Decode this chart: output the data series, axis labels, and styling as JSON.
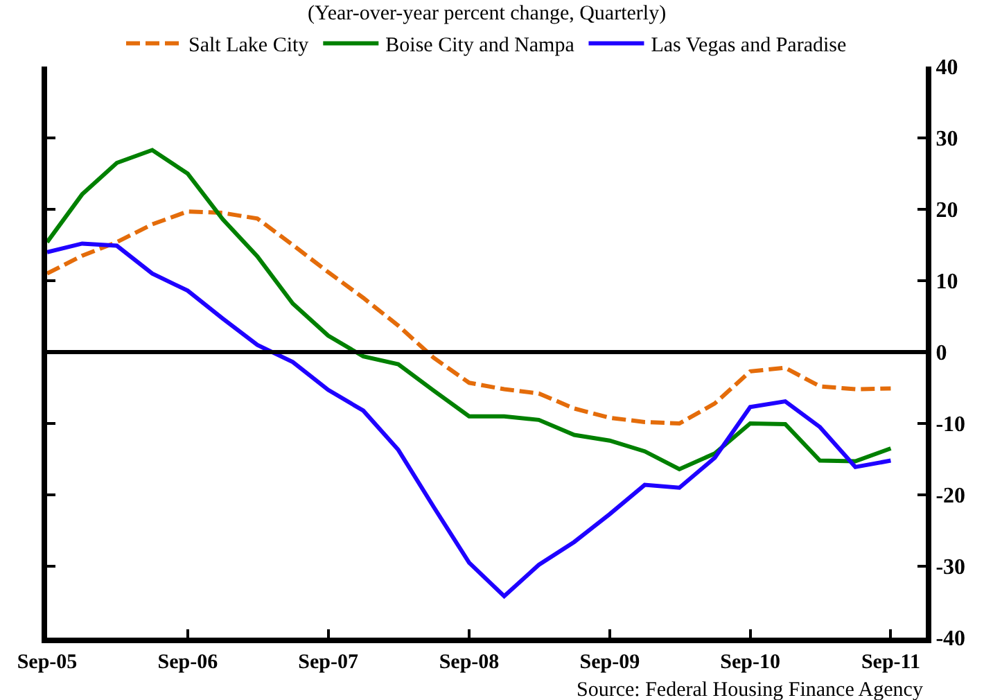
{
  "chart_data": {
    "type": "line",
    "subtitle": "(Year-over-year percent change, Quarterly)",
    "annotations": [
      "Source: Federal Housing Finance Agency"
    ],
    "x": [
      "2005-09",
      "2005-12",
      "2006-03",
      "2006-06",
      "2006-09",
      "2006-12",
      "2007-03",
      "2007-06",
      "2007-09",
      "2007-12",
      "2008-03",
      "2008-06",
      "2008-09",
      "2008-12",
      "2009-03",
      "2009-06",
      "2009-09",
      "2009-12",
      "2010-03",
      "2010-06",
      "2010-09",
      "2010-12",
      "2011-03",
      "2011-06",
      "2011-09"
    ],
    "series": [
      {
        "name": "Salt Lake City",
        "color": "#e46c0a",
        "line_style": "dashed",
        "values": [
          11.0,
          13.5,
          15.4,
          17.9,
          19.7,
          19.5,
          18.7,
          15.0,
          11.2,
          7.6,
          3.7,
          -0.8,
          -4.3,
          -5.2,
          -5.8,
          -7.9,
          -9.2,
          -9.8,
          -10.0,
          -7.2,
          -2.7,
          -2.2,
          -4.8,
          -5.2,
          -5.1
        ]
      },
      {
        "name": "Boise City and Nampa",
        "color": "#008000",
        "line_style": "solid",
        "values": [
          15.4,
          22.1,
          26.5,
          28.3,
          25.0,
          18.6,
          13.4,
          6.8,
          2.3,
          -0.6,
          -1.7,
          -5.4,
          -9.0,
          -9.0,
          -9.5,
          -11.6,
          -12.4,
          -13.9,
          -16.4,
          -14.2,
          -10.0,
          -10.1,
          -15.2,
          -15.3,
          -13.5
        ]
      },
      {
        "name": "Las Vegas and Paradise",
        "color": "#1f00ff",
        "line_style": "solid",
        "values": [
          14.0,
          15.2,
          14.9,
          11.0,
          8.6,
          4.7,
          1.0,
          -1.4,
          -5.3,
          -8.2,
          -13.7,
          -21.7,
          -29.5,
          -34.2,
          -29.8,
          -26.6,
          -22.7,
          -18.6,
          -19.0,
          -14.8,
          -7.7,
          -6.9,
          -10.5,
          -16.1,
          -15.2
        ]
      }
    ],
    "xlim": [
      "2005-09",
      "2011-12"
    ],
    "xticks": [
      {
        "value": "2005-09",
        "label": "Sep-05"
      },
      {
        "value": "2006-09",
        "label": "Sep-06"
      },
      {
        "value": "2007-09",
        "label": "Sep-07"
      },
      {
        "value": "2008-09",
        "label": "Sep-08"
      },
      {
        "value": "2009-09",
        "label": "Sep-09"
      },
      {
        "value": "2010-09",
        "label": "Sep-10"
      },
      {
        "value": "2011-09",
        "label": "Sep-11"
      }
    ],
    "ylim": [
      -40,
      40
    ],
    "yticks": [
      -40,
      -30,
      -20,
      -10,
      0,
      10,
      20,
      30,
      40
    ],
    "ref_lines": [
      {
        "axis": "y",
        "value": 0,
        "color": "#000000"
      }
    ],
    "legend": "top",
    "marker": "none"
  }
}
